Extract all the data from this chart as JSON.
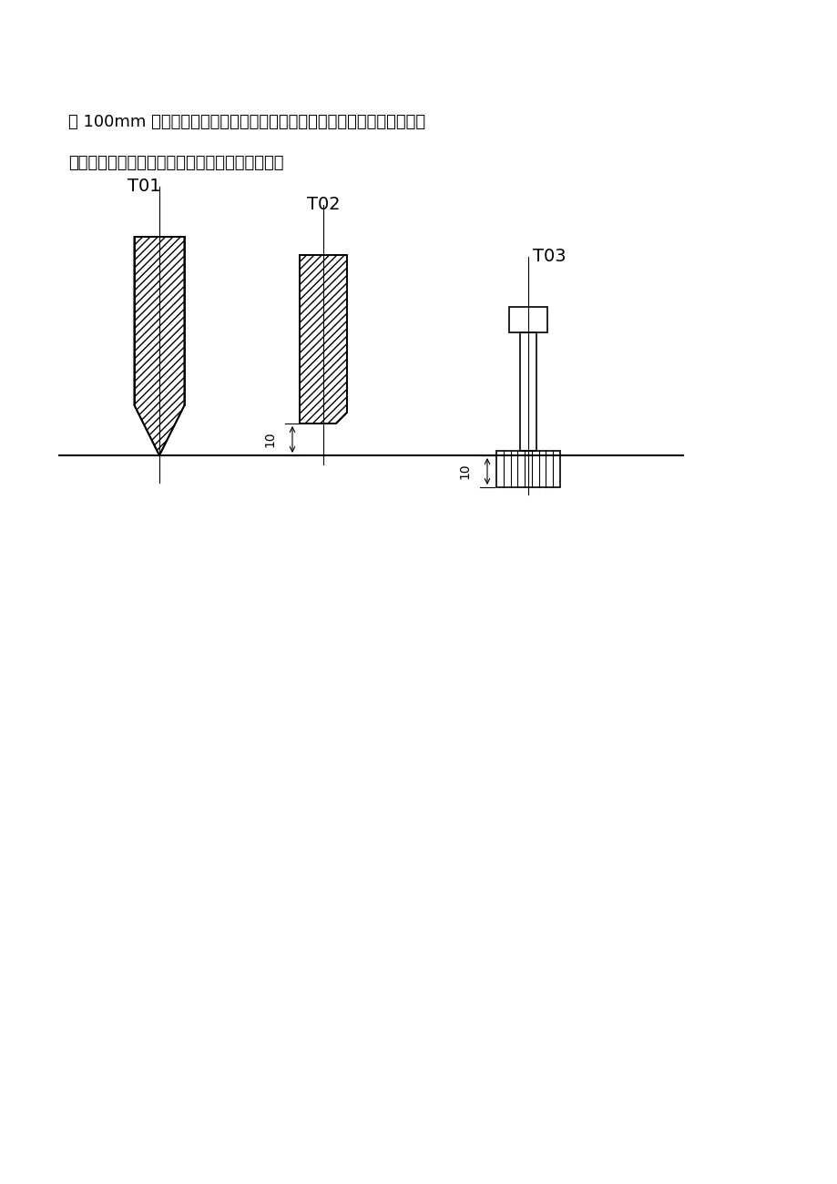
{
  "background_color": "#ffffff",
  "text_line1": "动 100mm 时，进行长度补偿的程序段，并说明存储器中的补偿值是多少。",
  "text_line2": "刀具实际位移是多少？（提示：用增量坐标编程）",
  "text_fontsize": 13,
  "label_T01": "T01",
  "label_T02": "T02",
  "label_T03": "T03",
  "label_fontsize": 14,
  "dim_10": "10",
  "dim_fontsize": 10,
  "line_color": "#000000",
  "hatch_color": "#000000"
}
